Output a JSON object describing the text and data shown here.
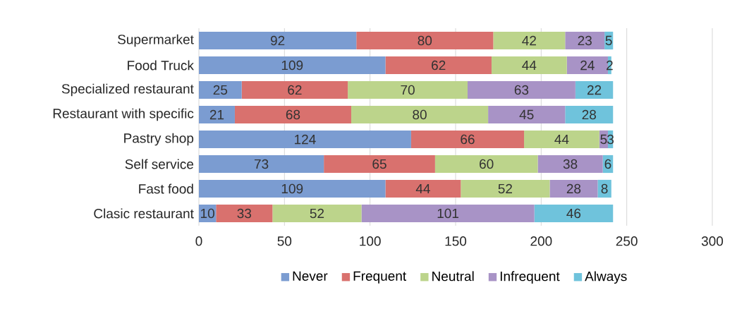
{
  "chart_data": {
    "type": "bar",
    "orientation": "horizontal",
    "stacked": true,
    "categories": [
      "Supermarket",
      "Food Truck",
      "Specialized restaurant",
      "Restaurant with specific",
      "Pastry shop",
      "Self service",
      "Fast food",
      "Clasic restaurant"
    ],
    "series": [
      {
        "name": "Never",
        "color": "#7b9cd1",
        "values": [
          92,
          109,
          25,
          21,
          124,
          73,
          109,
          10
        ]
      },
      {
        "name": "Frequent",
        "color": "#d9716e",
        "values": [
          80,
          62,
          62,
          68,
          66,
          65,
          44,
          33
        ]
      },
      {
        "name": "Neutral",
        "color": "#bcd48b",
        "values": [
          42,
          44,
          70,
          80,
          44,
          60,
          52,
          52
        ]
      },
      {
        "name": "Infrequent",
        "color": "#a893c6",
        "values": [
          23,
          24,
          63,
          45,
          5,
          38,
          28,
          101
        ]
      },
      {
        "name": "Always",
        "color": "#6fc3dc",
        "values": [
          5,
          2,
          22,
          28,
          3,
          6,
          8,
          46
        ]
      }
    ],
    "xlim": [
      0,
      300
    ],
    "xticks": [
      0,
      50,
      100,
      150,
      200,
      250,
      300
    ],
    "grid": "x",
    "legend": "bottom",
    "data_labels": true
  }
}
